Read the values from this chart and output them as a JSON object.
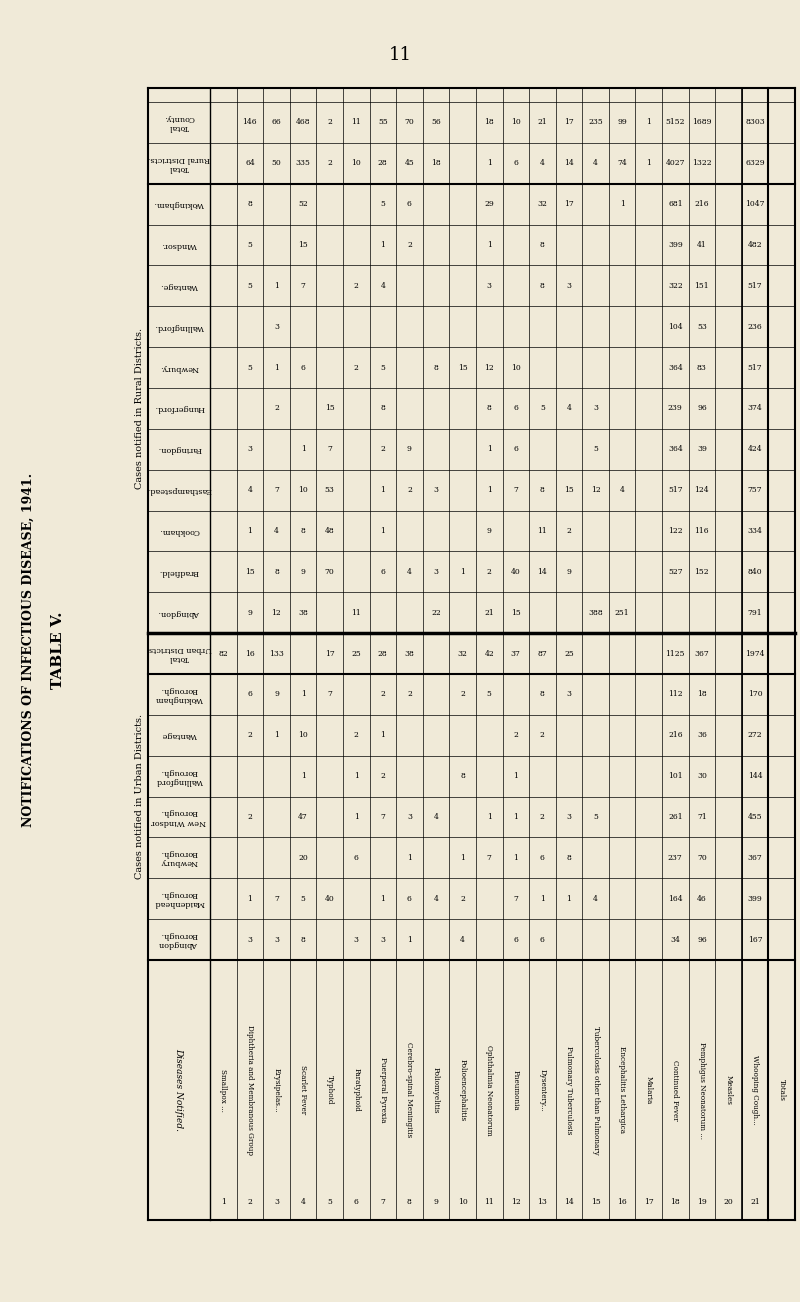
{
  "page_number": "11",
  "main_title": "TABLE V.",
  "main_subtitle": "NOTIFICATIONS OF INFECTIOUS DISEASE, 1941.",
  "background_color": "#f0ead8",
  "row_labels": [
    "Total\nCounty.",
    "Total\nRural Districts.",
    "Wokingham.",
    "Windsor.",
    "Wantage.",
    "Wallingford.",
    "Newbury.",
    "Hungerford.",
    "Faringdon.",
    "Easthampstead.",
    "Cookham.",
    "Bradfield.",
    "Abingdon.",
    "Total\nUrban Districts.",
    "Wokingham\nBorough.",
    "Wantage",
    "Wallingford\nBorough.",
    "New Windsor\nBorough.",
    "Newbury\nBorough.",
    "Maidenhead\nBorough.",
    "Abingdon\nBorough."
  ],
  "row_section_labels": [
    "Cases notified in Rural Districts.",
    "Cases notified in Urban Districts."
  ],
  "col_headers": [
    "1",
    "2",
    "3",
    "4",
    "5",
    "6",
    "7",
    "8",
    "9",
    "10",
    "11",
    "12",
    "13",
    "14",
    "15",
    "16",
    "17",
    "18",
    "19",
    "20",
    "21",
    "Totals"
  ],
  "disease_names": [
    "Smallpox ...",
    "Diphtheria and Membranous Group",
    "Erysipelas...",
    "Scarlet Fever",
    "Typhoid",
    "Paratyphoid",
    "Puerperal Pyrexia",
    "Cerebro-spinal Meningitis",
    "Poliomyelitis",
    "Polioencephalitis",
    "Ophthalmia Neonatorum",
    "Pneumonia",
    "Dysentery...",
    "Pulmonary Tuberculosis",
    "Tuberculosis other than Pulmonary",
    "Encephalitis Lethargica",
    "Malaria",
    "Continued Fever",
    "Pemphigus Neonatorum ...",
    "Measles",
    "Whooping Cough...",
    "Totals"
  ],
  "table_data": [
    [
      " ",
      "146",
      "66",
      "468",
      "2",
      "11",
      "55",
      "70",
      "56",
      " ",
      "18",
      "10",
      "21",
      "17",
      "235",
      "99",
      "1",
      "5152",
      "1689",
      " ",
      "8303"
    ],
    [
      " ",
      "64",
      "50",
      "335",
      "2",
      "10",
      "28",
      "45",
      "18",
      " ",
      "1",
      "6",
      "4",
      "14",
      "4",
      "74",
      "1",
      "4027",
      "1322",
      " ",
      "6329"
    ],
    [
      " ",
      "8",
      " ",
      "52",
      " ",
      " ",
      "5",
      "6",
      " ",
      " ",
      "29",
      " ",
      "32",
      "17",
      " ",
      "1",
      " ",
      "681",
      "216",
      " ",
      "1047"
    ],
    [
      " ",
      "5",
      " ",
      "15",
      " ",
      " ",
      "1",
      "2",
      " ",
      " ",
      "1",
      " ",
      "8",
      " ",
      " ",
      " ",
      " ",
      "399",
      "41",
      " ",
      "482"
    ],
    [
      " ",
      "5",
      "1",
      "7",
      " ",
      "2",
      "4",
      " ",
      " ",
      " ",
      "3",
      " ",
      "8",
      "3",
      " ",
      " ",
      " ",
      "322",
      "151",
      " ",
      "517"
    ],
    [
      " ",
      " ",
      "3",
      " ",
      " ",
      " ",
      " ",
      " ",
      " ",
      " ",
      " ",
      " ",
      " ",
      " ",
      " ",
      " ",
      " ",
      "104",
      "53",
      " ",
      "236"
    ],
    [
      " ",
      "5",
      "1",
      "6",
      " ",
      "2",
      "5",
      " ",
      "8",
      "15",
      "12",
      "10",
      " ",
      " ",
      " ",
      " ",
      " ",
      "364",
      "83",
      " ",
      "517"
    ],
    [
      " ",
      " ",
      "2",
      " ",
      "15",
      " ",
      "8",
      " ",
      " ",
      " ",
      "8",
      "6",
      "5",
      "4",
      "3",
      " ",
      " ",
      "239",
      "96",
      " ",
      "374"
    ],
    [
      " ",
      "3",
      " ",
      "1",
      "7",
      " ",
      "2",
      "9",
      " ",
      " ",
      "1",
      "6",
      " ",
      " ",
      "5",
      " ",
      " ",
      "364",
      "39",
      " ",
      "424"
    ],
    [
      " ",
      "4",
      "7",
      "10",
      "53",
      " ",
      "1",
      "2",
      "3",
      " ",
      "1",
      "7",
      "8",
      "15",
      "12",
      "4",
      " ",
      "517",
      "124",
      " ",
      "757"
    ],
    [
      " ",
      "1",
      "4",
      "8",
      "48",
      " ",
      "1",
      " ",
      " ",
      " ",
      "9",
      " ",
      "11",
      "2",
      " ",
      " ",
      " ",
      "122",
      "116",
      " ",
      "334"
    ],
    [
      " ",
      "15",
      "8",
      "9",
      "70",
      " ",
      "6",
      "4",
      "3",
      "1",
      "2",
      "40",
      "14",
      "9",
      " ",
      " ",
      " ",
      "527",
      "152",
      " ",
      "840"
    ],
    [
      " ",
      "9",
      "12",
      "38",
      " ",
      "11",
      " ",
      " ",
      "22",
      " ",
      "21",
      "15",
      " ",
      " ",
      "388",
      "251",
      " ",
      " ",
      " ",
      " ",
      "791"
    ],
    [
      "82",
      "16",
      "133",
      " ",
      "17",
      "25",
      "28",
      "38",
      " ",
      "32",
      "42",
      "37",
      "87",
      "25",
      " ",
      " ",
      " ",
      "1125",
      "367",
      " ",
      "1974"
    ],
    [
      " ",
      "6",
      "9",
      "1",
      "7",
      " ",
      "2",
      "2",
      " ",
      "2",
      "5",
      " ",
      "8",
      "3",
      " ",
      " ",
      " ",
      "112",
      "18",
      " ",
      "170"
    ],
    [
      " ",
      "2",
      "1",
      "10",
      " ",
      "2",
      "1",
      " ",
      " ",
      " ",
      " ",
      "2",
      "2",
      " ",
      " ",
      " ",
      " ",
      "216",
      "36",
      " ",
      "272"
    ],
    [
      " ",
      " ",
      " ",
      "1",
      " ",
      "1",
      "2",
      " ",
      " ",
      "8",
      " ",
      "1",
      " ",
      " ",
      " ",
      " ",
      " ",
      "101",
      "30",
      " ",
      "144"
    ],
    [
      " ",
      "2",
      " ",
      "47",
      " ",
      "1",
      "7",
      "3",
      "4",
      " ",
      "1",
      "1",
      "2",
      "3",
      "5",
      " ",
      " ",
      "261",
      "71",
      " ",
      "455"
    ],
    [
      " ",
      " ",
      " ",
      "20",
      " ",
      "6",
      " ",
      "1",
      " ",
      "1",
      "7",
      "1",
      "6",
      "8",
      " ",
      " ",
      " ",
      "237",
      "70",
      " ",
      "367"
    ],
    [
      " ",
      "1",
      "7",
      "5",
      "40",
      " ",
      "1",
      "6",
      "4",
      "2",
      " ",
      "7",
      "1",
      "1",
      "4",
      " ",
      " ",
      "164",
      "46",
      " ",
      "399"
    ],
    [
      " ",
      "3",
      "3",
      "8",
      " ",
      "3",
      "3",
      "1",
      " ",
      "4",
      " ",
      "6",
      "6",
      " ",
      " ",
      " ",
      " ",
      "34",
      "96",
      " ",
      "167"
    ]
  ]
}
